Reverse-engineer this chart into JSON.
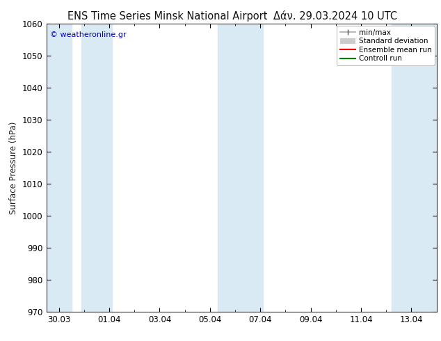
{
  "title_left": "ENS Time Series Minsk National Airport",
  "title_right": "Δάν. 29.03.2024 10 UTC",
  "ylabel": "Surface Pressure (hPa)",
  "ylim": [
    970,
    1060
  ],
  "yticks": [
    970,
    980,
    990,
    1000,
    1010,
    1020,
    1030,
    1040,
    1050,
    1060
  ],
  "xtick_labels": [
    "30.03",
    "01.04",
    "03.04",
    "05.04",
    "07.04",
    "09.04",
    "11.04",
    "13.04"
  ],
  "xtick_positions": [
    0,
    2,
    4,
    6,
    8,
    10,
    12,
    14
  ],
  "xmin": -0.5,
  "xmax": 15.0,
  "watermark": "© weatheronline.gr",
  "legend_entries": [
    "min/max",
    "Standard deviation",
    "Ensemble mean run",
    "Controll run"
  ],
  "shaded_band_color": "#daeaf5",
  "shaded_columns": [
    {
      "xmin": -0.5,
      "xmax": 0.5
    },
    {
      "xmin": 0.9,
      "xmax": 2.1
    },
    {
      "xmin": 6.3,
      "xmax": 8.1
    },
    {
      "xmin": 13.2,
      "xmax": 15.0
    }
  ],
  "background_color": "#ffffff",
  "plot_bg_color": "#ffffff",
  "title_fontsize": 10.5,
  "axis_fontsize": 8.5,
  "tick_fontsize": 8.5
}
